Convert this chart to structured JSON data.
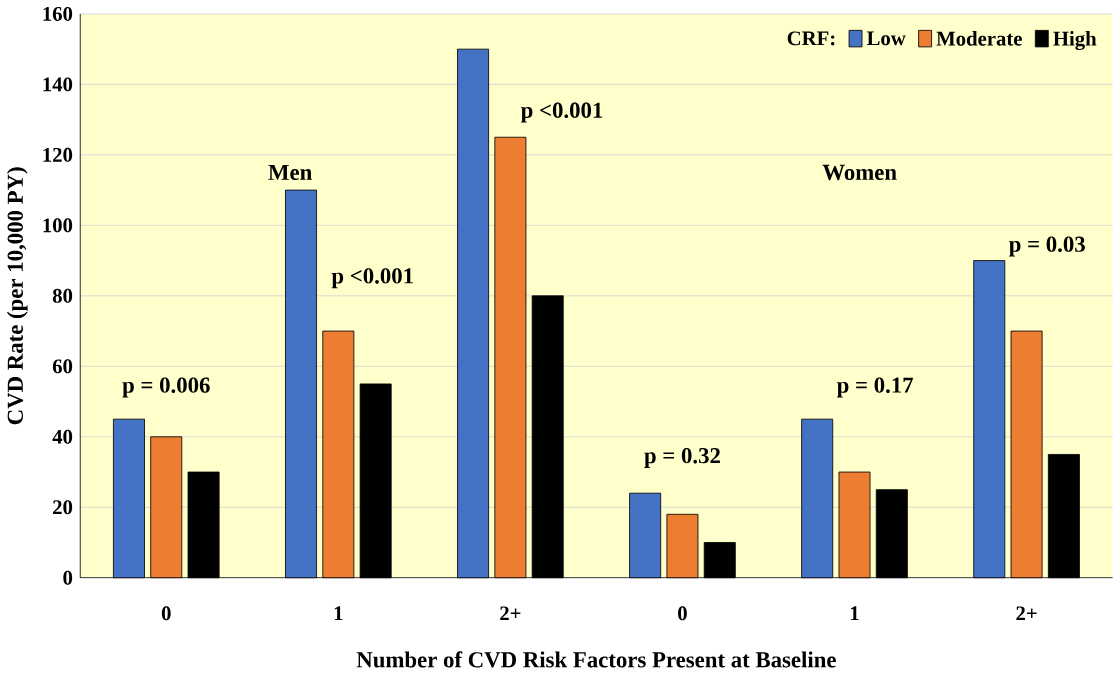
{
  "chart_data": {
    "type": "bar",
    "xlabel": "Number of CVD Risk Factors Present at Baseline",
    "ylabel": "CVD Rate (per 10,000 PY)",
    "legend_title": "CRF:",
    "categories": [
      "0",
      "1",
      "2+",
      "0",
      "1",
      "2+"
    ],
    "series": [
      {
        "name": "Low",
        "color": "#4472c4",
        "values": [
          45,
          110,
          150,
          24,
          45,
          90
        ]
      },
      {
        "name": "Moderate",
        "color": "#ed7d31",
        "values": [
          40,
          70,
          125,
          18,
          30,
          70
        ]
      },
      {
        "name": "High",
        "color": "#000000",
        "values": [
          30,
          55,
          80,
          10,
          25,
          35
        ]
      }
    ],
    "ylim": [
      0,
      160
    ],
    "yticks": [
      0,
      20,
      40,
      60,
      80,
      100,
      120,
      140,
      160
    ],
    "grid": "y",
    "legend": "top right",
    "annotations": [
      "Men",
      "p = 0.006",
      "p <0.001",
      "p <0.001",
      "Women",
      "p = 0.32",
      "p = 0.17",
      "p = 0.03"
    ]
  }
}
